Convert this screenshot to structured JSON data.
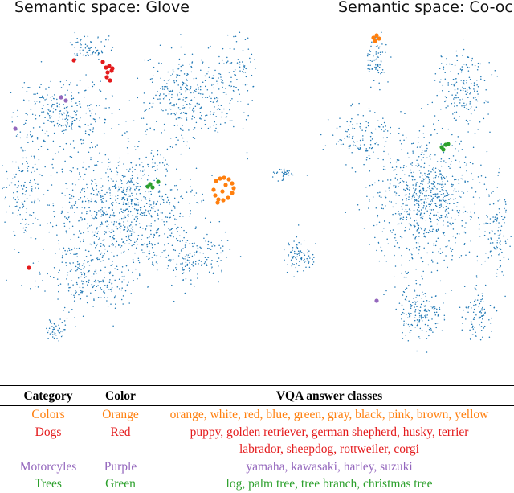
{
  "panels": {
    "left_title": "Semantic space: Glove",
    "right_title": "Semantic space: Co-oc"
  },
  "chart_data": [
    {
      "type": "scatter",
      "title": "Semantic space: Glove",
      "xlabel": "",
      "ylabel": "",
      "xlim": [
        0,
        320
      ],
      "ylim": [
        0,
        450
      ],
      "grid": false,
      "background": {
        "color": "#1f77b4",
        "point_count": 2200
      },
      "series": [
        {
          "name": "Colors",
          "color": "#ff7f0e",
          "points": [
            [
              269,
              225
            ],
            [
              274,
              222
            ],
            [
              279,
              221
            ],
            [
              285,
              223
            ],
            [
              289,
              228
            ],
            [
              291,
              234
            ],
            [
              289,
              240
            ],
            [
              284,
              246
            ],
            [
              278,
              249
            ],
            [
              272,
              248
            ],
            [
              268,
              243
            ],
            [
              266,
              236
            ],
            [
              277,
              238
            ],
            [
              271,
              252
            ],
            [
              281,
              230
            ]
          ]
        },
        {
          "name": "Dogs",
          "color": "#e41a1c",
          "points": [
            [
              92,
              75
            ],
            [
              128,
              77
            ],
            [
              132,
              84
            ],
            [
              136,
              82
            ],
            [
              140,
              85
            ],
            [
              134,
              90
            ],
            [
              139,
              88
            ],
            [
              133,
              96
            ],
            [
              137,
              100
            ],
            [
              36,
              333
            ]
          ]
        },
        {
          "name": "Motorcyles",
          "color": "#9467bd",
          "points": [
            [
              19,
              160
            ],
            [
              76,
              121
            ],
            [
              82,
              125
            ]
          ]
        },
        {
          "name": "Trees",
          "color": "#2ca02c",
          "points": [
            [
              184,
              232
            ],
            [
              187,
              229
            ],
            [
              197,
              226
            ],
            [
              190,
              233
            ]
          ]
        }
      ]
    },
    {
      "type": "scatter",
      "title": "Semantic space: Co-oc",
      "xlabel": "",
      "ylabel": "",
      "xlim": [
        320,
        640
      ],
      "ylim": [
        0,
        450
      ],
      "grid": false,
      "background": {
        "color": "#1f77b4",
        "point_count": 1600
      },
      "series": [
        {
          "name": "Colors",
          "color": "#ff7f0e",
          "points": [
            [
              465,
              47
            ],
            [
              469,
              44
            ],
            [
              472,
              48
            ],
            [
              467,
              51
            ]
          ]
        },
        {
          "name": "Trees",
          "color": "#2ca02c",
          "points": [
            [
              550,
              183
            ],
            [
              555,
              180
            ],
            [
              558,
              179
            ],
            [
              552,
              186
            ]
          ]
        },
        {
          "name": "Motorcyles",
          "color": "#9467bd",
          "points": [
            [
              469,
              374
            ]
          ]
        }
      ]
    }
  ],
  "legend_table": {
    "headers": [
      "Category",
      "Color",
      "VQA answer classes"
    ],
    "rows": [
      {
        "category": "Colors",
        "color_name": "Orange",
        "color": "#ff7f0e",
        "classes": [
          "orange, white, red, blue, green, gray, black, pink, brown, yellow"
        ]
      },
      {
        "category": "Dogs",
        "color_name": "Red",
        "color": "#e41a1c",
        "classes": [
          "puppy, golden retriever, german shepherd, husky, terrier",
          "labrador, sheepdog, rottweiler, corgi"
        ]
      },
      {
        "category": "Motorcyles",
        "color_name": "Purple",
        "color": "#9467bd",
        "classes": [
          "yamaha, kawasaki, harley, suzuki"
        ]
      },
      {
        "category": "Trees",
        "color_name": "Green",
        "color": "#2ca02c",
        "classes": [
          "log, palm tree, tree branch, christmas tree"
        ]
      }
    ]
  }
}
